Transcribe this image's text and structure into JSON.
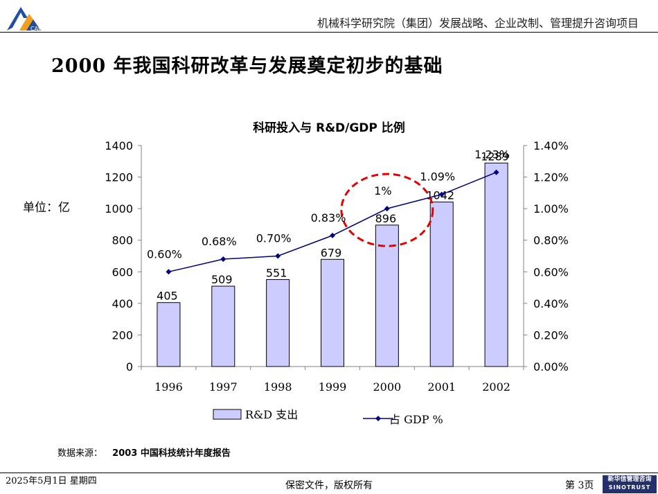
{
  "header": {
    "title": "机械科学研究院（集团）发展战略、企业改制、管理提升咨询项目",
    "logo_text": "CAM"
  },
  "page_title": "2000 年我国科研改革与发展奠定初步的基础",
  "unit_label": "单位：亿",
  "chart_data": {
    "type": "bar+line",
    "title": "科研投入与 R&D/GDP 比例",
    "categories": [
      "1996",
      "1997",
      "1998",
      "1999",
      "2000",
      "2001",
      "2002"
    ],
    "series": [
      {
        "name": "R&D 支出",
        "type": "bar",
        "axis": "left",
        "values": [
          405,
          509,
          551,
          679,
          896,
          1042,
          1289
        ],
        "labels": [
          "405",
          "509",
          "551",
          "679",
          "896",
          "1042",
          "1289"
        ],
        "color": "#ccccff"
      },
      {
        "name": "占 GDP %",
        "type": "line",
        "axis": "right",
        "values": [
          0.6,
          0.68,
          0.7,
          0.83,
          1.0,
          1.09,
          1.23
        ],
        "labels": [
          "0.60%",
          "0.68%",
          "0.70%",
          "0.83%",
          "1%",
          "1.09%",
          "1.23%"
        ],
        "color": "#000080"
      }
    ],
    "y_left": {
      "min": 0,
      "max": 1400,
      "ticks": [
        "0",
        "200",
        "400",
        "600",
        "800",
        "1000",
        "1200",
        "1400"
      ]
    },
    "y_right": {
      "min": 0,
      "max": 1.4,
      "ticks": [
        "0.00%",
        "0.20%",
        "0.40%",
        "0.60%",
        "0.80%",
        "1.00%",
        "1.20%",
        "1.40%"
      ]
    },
    "grid": false,
    "legend": "bottom",
    "highlight": {
      "category": "2000",
      "shape": "dashed-ellipse",
      "color": "#e60000"
    }
  },
  "source": {
    "label": "数据来源：",
    "value": "2003 中国科技统计年度报告"
  },
  "footer": {
    "date": "2025年5月1日 星期四",
    "center": "保密文件，版权所有",
    "page": "第 3页",
    "logo_line1": "新华信管理咨询",
    "logo_line2": "SINOTRUST"
  }
}
